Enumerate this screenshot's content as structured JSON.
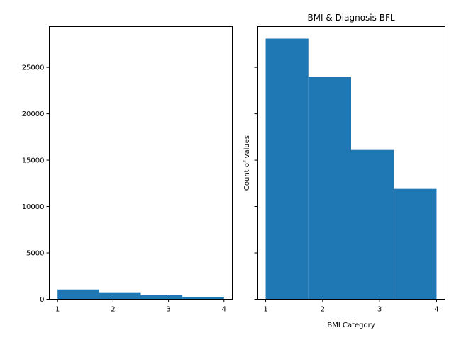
{
  "chart_data": [
    {
      "type": "bar",
      "title": "",
      "xlabel": "",
      "ylabel": "",
      "bin_edges": [
        1,
        1.75,
        2.5,
        3.25,
        4
      ],
      "values": [
        1050,
        750,
        450,
        220
      ],
      "xlim": [
        0.85,
        4.15
      ],
      "ylim": [
        0,
        29400
      ],
      "xticks": [
        1,
        2,
        3,
        4
      ],
      "yticks": [
        0,
        5000,
        10000,
        15000,
        20000,
        25000
      ],
      "bar_color": "#1f77b4",
      "grid": false,
      "legend": "none"
    },
    {
      "type": "bar",
      "title": "BMI & Diagnosis BFL",
      "xlabel": "BMI Category",
      "ylabel": "Count of values",
      "bin_edges": [
        1,
        1.75,
        2.5,
        3.25,
        4
      ],
      "values": [
        28100,
        24000,
        16100,
        11900
      ],
      "xlim": [
        0.85,
        4.15
      ],
      "ylim": [
        0,
        29400
      ],
      "xticks": [
        1,
        2,
        3,
        4
      ],
      "yticks": [
        0,
        5000,
        10000,
        15000,
        20000,
        25000
      ],
      "shared_y": true,
      "bar_color": "#1f77b4",
      "grid": false,
      "legend": "none"
    }
  ]
}
